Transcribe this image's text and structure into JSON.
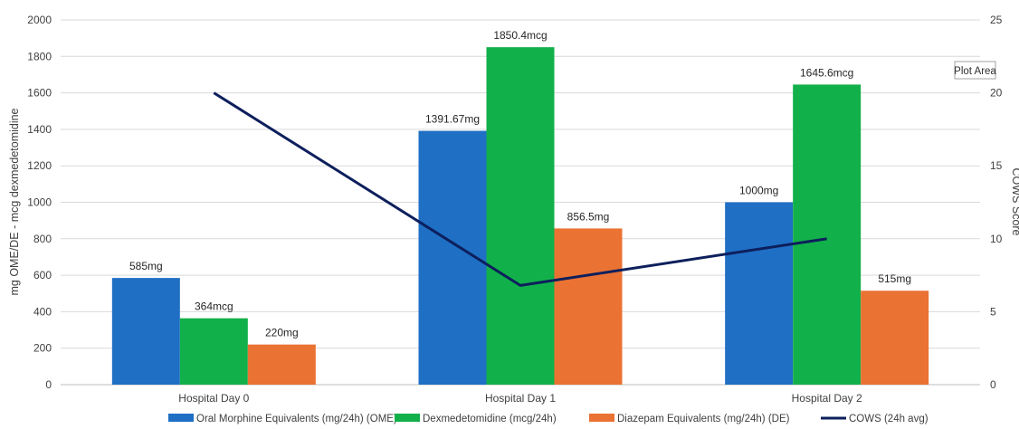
{
  "chart_data": {
    "type": "bar",
    "categories": [
      "Hospital Day 0",
      "Hospital Day 1",
      "Hospital Day 2"
    ],
    "ylabel": "mg OME/DE - mcg dexmedetomidine",
    "y2label": "COWS Score",
    "ylim": [
      0,
      2000
    ],
    "y2lim": [
      0,
      25
    ],
    "yticks": [
      "0",
      "200",
      "400",
      "600",
      "800",
      "1000",
      "1200",
      "1400",
      "1600",
      "1800",
      "2000"
    ],
    "y2ticks": [
      "0",
      "5",
      "10",
      "15",
      "20",
      "25"
    ],
    "grid": true,
    "legend_position": "bottom",
    "tooltip": "Plot Area",
    "series": [
      {
        "name": "Oral Morphine Equivalents (mg/24h) (OME)",
        "type": "bar",
        "axis": "left",
        "color": "#1f6fc5",
        "values": [
          585,
          1391.67,
          1000
        ],
        "labels": [
          "585mg",
          "1391.67mg",
          "1000mg"
        ]
      },
      {
        "name": "Dexmedetomidine (mcg/24h)",
        "type": "bar",
        "axis": "left",
        "color": "#12b04a",
        "values": [
          364,
          1850.4,
          1645.6
        ],
        "labels": [
          "364mcg",
          "1850.4mcg",
          "1645.6mcg"
        ]
      },
      {
        "name": "Diazepam Equivalents (mg/24h) (DE)",
        "type": "bar",
        "axis": "left",
        "color": "#ea7233",
        "values": [
          220,
          856.5,
          515
        ],
        "labels": [
          "220mg",
          "856.5mg",
          "515mg"
        ]
      },
      {
        "name": "COWS (24h avg)",
        "type": "line",
        "axis": "right",
        "color": "#0d1f5c",
        "values": [
          20,
          6.8,
          10
        ]
      }
    ]
  }
}
